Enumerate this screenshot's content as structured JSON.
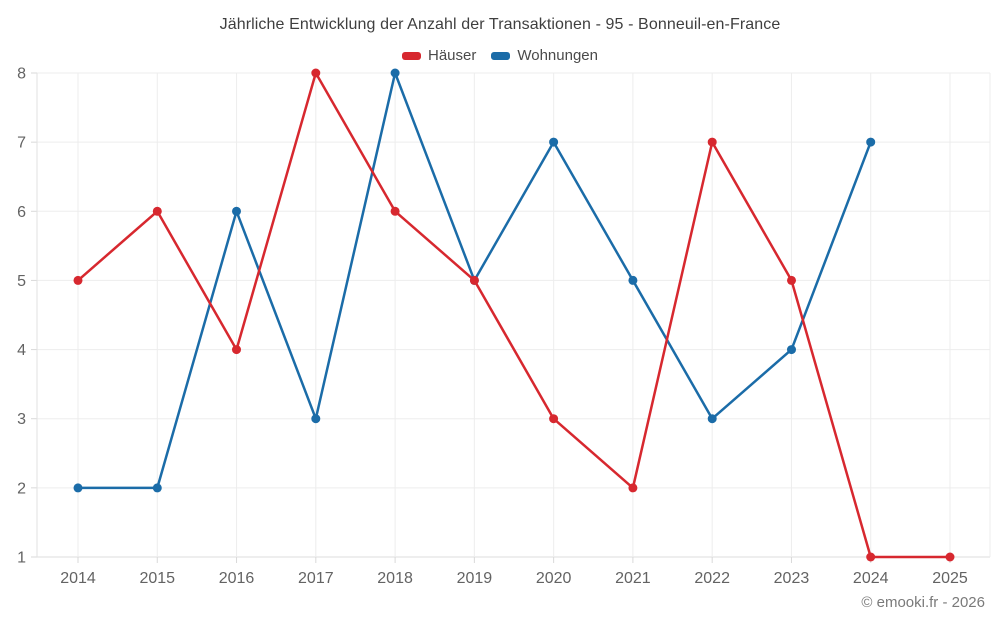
{
  "header": {
    "title": "Jährliche Entwicklung der Anzahl der Transaktionen - 95 - Bonneuil-en-France"
  },
  "footer": {
    "credit": "© emooki.fr - 2026"
  },
  "colors": {
    "haeuser": "#d7282f",
    "wohnungen": "#1b6ca8",
    "gridline": "#ededed",
    "axis_line": "#e2e2e2",
    "bottom_axis": "#dcdcdc",
    "tick": "#d9d9d9",
    "axis_text": "#636363"
  },
  "chart_data": {
    "type": "line",
    "title": "Jährliche Entwicklung der Anzahl der Transaktionen - 95 - Bonneuil-en-France",
    "categories": [
      "2014",
      "2015",
      "2016",
      "2017",
      "2018",
      "2019",
      "2020",
      "2021",
      "2022",
      "2023",
      "2024",
      "2025"
    ],
    "series": [
      {
        "name": "Häuser",
        "color": "#d7282f",
        "values": [
          5,
          6,
          4,
          8,
          6,
          5,
          3,
          2,
          7,
          5,
          1,
          1
        ]
      },
      {
        "name": "Wohnungen",
        "color": "#1b6ca8",
        "values": [
          2,
          2,
          6,
          3,
          8,
          5,
          7,
          5,
          3,
          4,
          7,
          null
        ]
      }
    ],
    "xlabel": "",
    "ylabel": "",
    "ylim": [
      1,
      8
    ],
    "yticks": [
      1,
      2,
      3,
      4,
      5,
      6,
      7,
      8
    ],
    "grid": true,
    "legend_position": "top-center",
    "annotations": [
      "© emooki.fr - 2026"
    ]
  }
}
